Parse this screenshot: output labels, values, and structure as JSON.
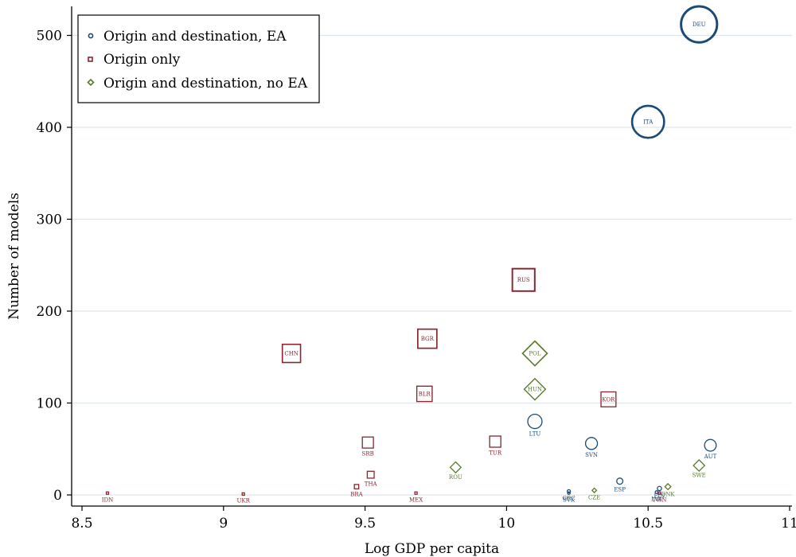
{
  "colors": {
    "ea": "#1a4a7a",
    "origin_only": "#8b2530",
    "no_ea": "#5a7a2a",
    "grid": "#dde6ea"
  },
  "chart_data": {
    "type": "scatter",
    "xlabel": "Log GDP per capita",
    "ylabel": "Number of models",
    "xlim": [
      8.5,
      11
    ],
    "ylim": [
      -10,
      525
    ],
    "xticks": [
      8.5,
      9,
      9.5,
      10,
      10.5,
      11
    ],
    "xtick_labels": [
      "8.5",
      "9",
      "9.5",
      "10",
      "10.5",
      "11"
    ],
    "yticks": [
      0,
      100,
      200,
      300,
      400,
      500
    ],
    "ytick_labels": [
      "0",
      "100",
      "200",
      "300",
      "400",
      "500"
    ],
    "grid": "horizontal",
    "legend_placement": "top-left",
    "series": [
      {
        "name": "Origin and destination, EA",
        "marker": "circle",
        "points": [
          {
            "label": "DEU",
            "x": 10.68,
            "y": 512
          },
          {
            "label": "ITA",
            "x": 10.5,
            "y": 406
          },
          {
            "label": "LTU",
            "x": 10.1,
            "y": 80
          },
          {
            "label": "SVN",
            "x": 10.3,
            "y": 56
          },
          {
            "label": "AUT",
            "x": 10.72,
            "y": 54
          },
          {
            "label": "ESP",
            "x": 10.4,
            "y": 15
          },
          {
            "label": "GRC",
            "x": 10.22,
            "y": 4
          },
          {
            "label": "SVK",
            "x": 10.22,
            "y": 2
          },
          {
            "label": "FIN",
            "x": 10.54,
            "y": 7
          },
          {
            "label": "LVA",
            "x": 10.53,
            "y": 3
          }
        ]
      },
      {
        "name": "Origin only",
        "marker": "square",
        "points": [
          {
            "label": "RUS",
            "x": 10.06,
            "y": 234
          },
          {
            "label": "CHN",
            "x": 9.24,
            "y": 154
          },
          {
            "label": "BGR",
            "x": 9.72,
            "y": 170
          },
          {
            "label": "BLR",
            "x": 9.71,
            "y": 110
          },
          {
            "label": "KOR",
            "x": 10.36,
            "y": 104
          },
          {
            "label": "TUR",
            "x": 9.96,
            "y": 58
          },
          {
            "label": "SRB",
            "x": 9.51,
            "y": 57
          },
          {
            "label": "THA",
            "x": 9.52,
            "y": 22
          },
          {
            "label": "BRA",
            "x": 9.47,
            "y": 9
          },
          {
            "label": "MEX",
            "x": 9.68,
            "y": 2
          },
          {
            "label": "IDN",
            "x": 8.59,
            "y": 2
          },
          {
            "label": "UKR",
            "x": 9.07,
            "y": 1
          },
          {
            "label": "TWN",
            "x": 10.54,
            "y": 2
          }
        ]
      },
      {
        "name": "Origin and destination, no EA",
        "marker": "diamond",
        "points": [
          {
            "label": "POL",
            "x": 10.1,
            "y": 154
          },
          {
            "label": "HUN",
            "x": 10.1,
            "y": 115
          },
          {
            "label": "ROU",
            "x": 9.82,
            "y": 30
          },
          {
            "label": "SWE",
            "x": 10.68,
            "y": 32
          },
          {
            "label": "CZE",
            "x": 10.31,
            "y": 5
          },
          {
            "label": "DNK",
            "x": 10.57,
            "y": 9
          }
        ]
      }
    ]
  }
}
